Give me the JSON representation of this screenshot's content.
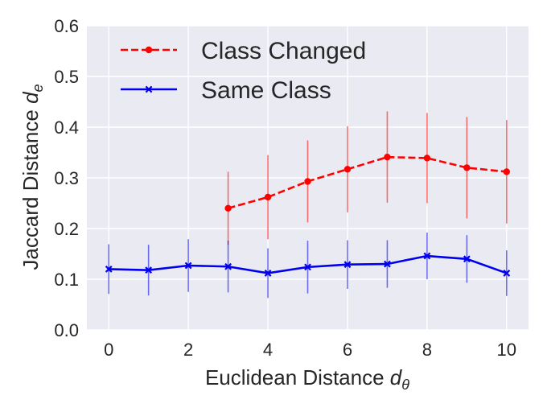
{
  "chart_data": {
    "type": "line",
    "title": "",
    "xlabel": "Euclidean Distance",
    "xlabel_sub": "θ",
    "ylabel": "Jaccard Distance",
    "ylabel_sub": "e",
    "xlim": [
      -0.55,
      10.55
    ],
    "ylim": [
      0.0,
      0.6
    ],
    "xticks": [
      "0",
      "2",
      "4",
      "6",
      "8",
      "10"
    ],
    "yticks": [
      "0.0",
      "0.1",
      "0.2",
      "0.3",
      "0.4",
      "0.5",
      "0.6"
    ],
    "grid": true,
    "legend_position": "top-left",
    "series": [
      {
        "name": "Class Changed",
        "color": "#ff0000",
        "linestyle": "dashed",
        "marker": "circle",
        "x": [
          3,
          4,
          5,
          6,
          7,
          8,
          9,
          10
        ],
        "y": [
          0.24,
          0.262,
          0.293,
          0.317,
          0.341,
          0.339,
          0.32,
          0.312
        ],
        "yerr": [
          0.072,
          0.083,
          0.081,
          0.085,
          0.09,
          0.089,
          0.1,
          0.102
        ]
      },
      {
        "name": "Same Class",
        "color": "#0000ee",
        "linestyle": "solid",
        "marker": "x",
        "x": [
          0,
          1,
          2,
          3,
          4,
          5,
          6,
          7,
          8,
          9,
          10
        ],
        "y": [
          0.12,
          0.118,
          0.127,
          0.125,
          0.112,
          0.124,
          0.129,
          0.13,
          0.146,
          0.14,
          0.112
        ],
        "yerr": [
          0.049,
          0.05,
          0.052,
          0.051,
          0.049,
          0.052,
          0.048,
          0.047,
          0.046,
          0.047,
          0.045
        ]
      }
    ]
  }
}
